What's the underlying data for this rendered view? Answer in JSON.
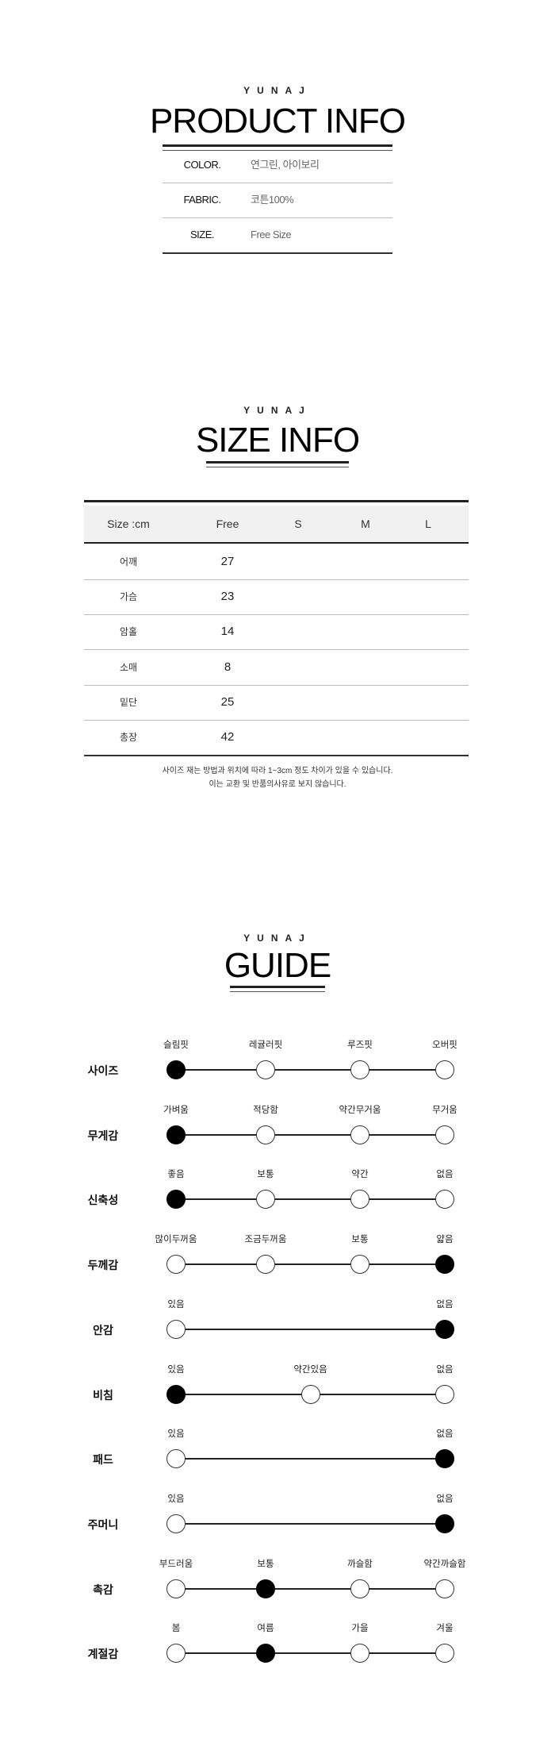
{
  "product_info": {
    "brand": "YUNAJ",
    "title": "PRODUCT INFO",
    "rows": [
      {
        "label": "COLOR.",
        "value": "연그린, 아이보리"
      },
      {
        "label": "FABRIC.",
        "value": "코튼100%"
      },
      {
        "label": "SIZE.",
        "value": "Free Size"
      }
    ]
  },
  "size_info": {
    "brand": "YUNAJ",
    "title": "SIZE INFO",
    "headers": [
      "Size :cm",
      "Free",
      "S",
      "M",
      "L"
    ],
    "rows": [
      {
        "label": "어깨",
        "values": [
          "27",
          "",
          "",
          ""
        ]
      },
      {
        "label": "가슴",
        "values": [
          "23",
          "",
          "",
          ""
        ]
      },
      {
        "label": "암홀",
        "values": [
          "14",
          "",
          "",
          ""
        ]
      },
      {
        "label": "소매",
        "values": [
          "8",
          "",
          "",
          ""
        ]
      },
      {
        "label": "밑단",
        "values": [
          "25",
          "",
          "",
          ""
        ]
      },
      {
        "label": "총장",
        "values": [
          "42",
          "",
          "",
          ""
        ]
      }
    ],
    "note_line1": "사이즈 재는 방법과 위치에 따라 1~3cm 정도 차이가 있을 수 있습니다.",
    "note_line2": "이는 교환 및 반품의사유로 보지 않습니다."
  },
  "guide": {
    "brand": "YUNAJ",
    "title": "GUIDE",
    "rows": [
      {
        "label": "사이즈",
        "options": [
          "슬림핏",
          "레귤러핏",
          "루즈핏",
          "오버핏"
        ],
        "selected": 0
      },
      {
        "label": "무게감",
        "options": [
          "가벼움",
          "적당함",
          "약간무거움",
          "무거움"
        ],
        "selected": 0
      },
      {
        "label": "신축성",
        "options": [
          "좋음",
          "보통",
          "약간",
          "없음"
        ],
        "selected": 0
      },
      {
        "label": "두께감",
        "options": [
          "많이두꺼움",
          "조금두꺼움",
          "보통",
          "얇음"
        ],
        "selected": 3
      },
      {
        "label": "안감",
        "options": [
          "있음",
          "없음"
        ],
        "selected": 1
      },
      {
        "label": "비침",
        "options": [
          "있음",
          "약간있음",
          "없음"
        ],
        "selected": 0
      },
      {
        "label": "패드",
        "options": [
          "있음",
          "없음"
        ],
        "selected": 1
      },
      {
        "label": "주머니",
        "options": [
          "있음",
          "없음"
        ],
        "selected": 1
      },
      {
        "label": "촉감",
        "options": [
          "부드러움",
          "보통",
          "까슬함",
          "약간까슬함"
        ],
        "selected": 1
      },
      {
        "label": "계절감",
        "options": [
          "봄",
          "여름",
          "가을",
          "겨울"
        ],
        "selected": 1
      }
    ]
  }
}
